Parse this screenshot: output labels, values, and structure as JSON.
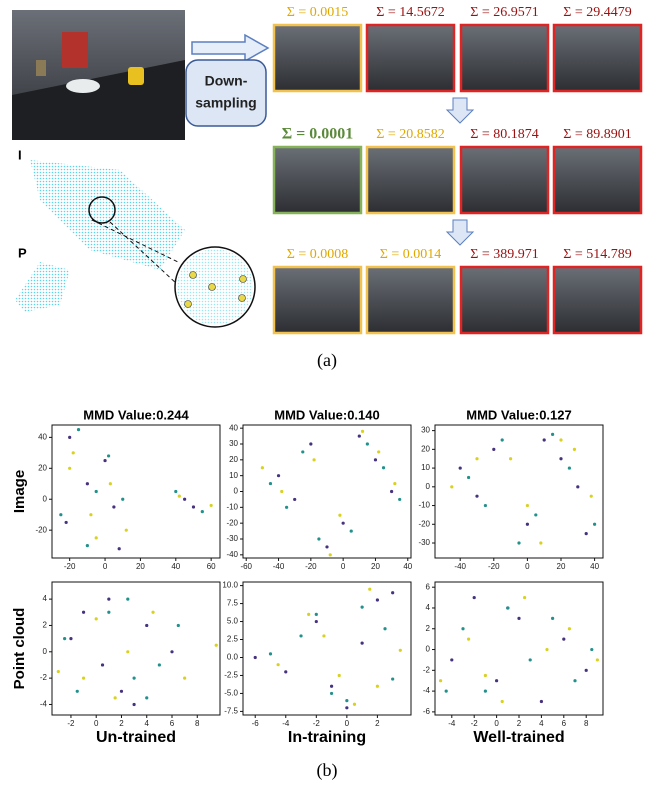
{
  "panel_a": {
    "downsampling": "Down-sampling",
    "image_label": "I",
    "points_label": "P",
    "caption": "(a)",
    "rows": [
      {
        "cells": [
          {
            "label": "Σ = 0.0015",
            "label_color": "#e0a800",
            "frame": "#f2c14e"
          },
          {
            "label": "Σ = 14.5672",
            "label_color": "#9c1010",
            "frame": "#e02424"
          },
          {
            "label": "Σ = 26.9571",
            "label_color": "#9c1010",
            "frame": "#e02424"
          },
          {
            "label": "Σ = 29.4479",
            "label_color": "#9c1010",
            "frame": "#e02424"
          }
        ]
      },
      {
        "cells": [
          {
            "label": "Σ = 0.0001",
            "label_color": "#5b8a3a",
            "frame": "#86b35a",
            "emphasis": true
          },
          {
            "label": "Σ = 20.8582",
            "label_color": "#e0a800",
            "frame": "#f2c14e"
          },
          {
            "label": "Σ = 80.1874",
            "label_color": "#9c1010",
            "frame": "#e02424"
          },
          {
            "label": "Σ = 89.8901",
            "label_color": "#9c1010",
            "frame": "#e02424"
          }
        ]
      },
      {
        "cells": [
          {
            "label": "Σ = 0.0008",
            "label_color": "#e0a800",
            "frame": "#f2c14e"
          },
          {
            "label": "Σ = 0.0014",
            "label_color": "#e0a800",
            "frame": "#f2c14e"
          },
          {
            "label": "Σ = 389.971",
            "label_color": "#9c1010",
            "frame": "#e02424"
          },
          {
            "label": "Σ = 514.789",
            "label_color": "#9c1010",
            "frame": "#e02424"
          }
        ]
      }
    ]
  },
  "panel_b": {
    "caption": "(b)",
    "row_labels": [
      "Image",
      "Point cloud"
    ],
    "col_labels": [
      "Un-trained",
      "In-training",
      "Well-trained"
    ],
    "charts": [
      {
        "type": "scatter",
        "title": "MMD Value:0.244",
        "xlim": [
          -30,
          65
        ],
        "ylim": [
          -38,
          48
        ],
        "xticks": [
          -20,
          0,
          20,
          40,
          60
        ],
        "yticks": [
          -20,
          0,
          20,
          40
        ],
        "series": [
          {
            "color": "#46327e",
            "x": [
              -20,
              -10,
              5,
              45,
              50,
              -22,
              0,
              8
            ],
            "y": [
              40,
              10,
              -5,
              0,
              -5,
              -15,
              25,
              -32
            ]
          },
          {
            "color": "#21918c",
            "x": [
              -15,
              -5,
              10,
              40,
              55,
              -25,
              2,
              -10
            ],
            "y": [
              45,
              5,
              0,
              5,
              -8,
              -10,
              28,
              -30
            ]
          },
          {
            "color": "#d8d21f",
            "x": [
              -18,
              -8,
              12,
              42,
              -20,
              3,
              -5,
              60
            ],
            "y": [
              30,
              -10,
              -20,
              2,
              20,
              10,
              -25,
              -4
            ]
          }
        ]
      },
      {
        "type": "scatter",
        "title": "MMD Value:0.140",
        "xlim": [
          -62,
          42
        ],
        "ylim": [
          -42,
          42
        ],
        "xticks": [
          -60,
          -40,
          -20,
          0,
          20,
          40
        ],
        "yticks": [
          -40,
          -30,
          -20,
          -10,
          0,
          10,
          20,
          30,
          40
        ],
        "series": [
          {
            "color": "#46327e",
            "x": [
              -40,
              -20,
              0,
              20,
              30,
              -10,
              10,
              -30
            ],
            "y": [
              10,
              30,
              -20,
              20,
              0,
              -35,
              35,
              -5
            ]
          },
          {
            "color": "#21918c",
            "x": [
              -45,
              -25,
              5,
              25,
              35,
              -15,
              15,
              -35
            ],
            "y": [
              5,
              25,
              -25,
              15,
              -5,
              -30,
              30,
              -10
            ]
          },
          {
            "color": "#d8d21f",
            "x": [
              -38,
              -18,
              -2,
              22,
              32,
              -8,
              12,
              -50
            ],
            "y": [
              0,
              20,
              -15,
              25,
              5,
              -40,
              38,
              15
            ]
          }
        ]
      },
      {
        "type": "scatter",
        "title": "MMD Value:0.127",
        "xlim": [
          -55,
          45
        ],
        "ylim": [
          -38,
          33
        ],
        "xticks": [
          -40,
          -20,
          0,
          20,
          40
        ],
        "yticks": [
          -30,
          -20,
          -10,
          0,
          10,
          20,
          30
        ],
        "series": [
          {
            "color": "#46327e",
            "x": [
              -40,
              -20,
              0,
              20,
              35,
              -30,
              10,
              30
            ],
            "y": [
              10,
              20,
              -20,
              15,
              -25,
              -5,
              25,
              0
            ]
          },
          {
            "color": "#21918c",
            "x": [
              -35,
              -15,
              5,
              25,
              40,
              -25,
              15,
              -5
            ],
            "y": [
              5,
              25,
              -15,
              10,
              -20,
              -10,
              28,
              -30
            ]
          },
          {
            "color": "#d8d21f",
            "x": [
              -45,
              -10,
              8,
              28,
              38,
              -30,
              0,
              20
            ],
            "y": [
              0,
              15,
              -30,
              20,
              -5,
              15,
              -10,
              25
            ]
          }
        ]
      },
      {
        "type": "scatter",
        "xlim": [
          -3.5,
          9.8
        ],
        "ylim": [
          -4.8,
          5.3
        ],
        "xticks": [
          -2,
          0,
          2,
          4,
          6,
          8
        ],
        "yticks": [
          -4,
          -2,
          0,
          2,
          4
        ],
        "series": [
          {
            "color": "#46327e",
            "x": [
              -1,
              0.5,
              2,
              4,
              6,
              3,
              1,
              -2
            ],
            "y": [
              3,
              -1,
              -3,
              2,
              0,
              -4,
              4,
              1
            ]
          },
          {
            "color": "#21918c",
            "x": [
              -2.5,
              1,
              3,
              5,
              6.5,
              2.5,
              -1.5,
              4
            ],
            "y": [
              1,
              3,
              -2,
              -1,
              2,
              4,
              -3,
              -3.5
            ]
          },
          {
            "color": "#d8d21f",
            "x": [
              -3,
              0,
              2.5,
              4.5,
              7,
              9.5,
              1.5,
              -1
            ],
            "y": [
              -1.5,
              2.5,
              0,
              3,
              -2,
              0.5,
              -3.5,
              -2
            ]
          }
        ]
      },
      {
        "type": "scatter",
        "xlim": [
          -6.8,
          4.2
        ],
        "ylim": [
          -8,
          10.5
        ],
        "xticks": [
          -6,
          -4,
          -2,
          0,
          2
        ],
        "yticks": [
          -7.5,
          {
            "value": -5,
            "label": "-5.0"
          },
          -2.5,
          {
            "value": 0,
            "label": "0.0"
          },
          2.5,
          {
            "value": 5,
            "label": "5.0"
          },
          7.5,
          {
            "value": 10,
            "label": "10.0"
          }
        ],
        "series": [
          {
            "color": "#46327e",
            "x": [
              -6,
              -4,
              -2,
              0,
              2,
              1,
              -1,
              3
            ],
            "y": [
              0,
              -2,
              5,
              -7,
              8,
              2,
              -4,
              9
            ]
          },
          {
            "color": "#21918c",
            "x": [
              -5,
              -3,
              -1,
              1,
              3,
              0,
              -2,
              2.5
            ],
            "y": [
              0.5,
              3,
              -5,
              7,
              -3,
              -6,
              6,
              4
            ]
          },
          {
            "color": "#d8d21f",
            "x": [
              -4.5,
              -2.5,
              -0.5,
              1.5,
              3.5,
              0.5,
              -1.5,
              2
            ],
            "y": [
              -1,
              6,
              -2.5,
              9.5,
              1,
              -6.5,
              3,
              -4
            ]
          }
        ]
      },
      {
        "type": "scatter",
        "xlim": [
          -5.5,
          9.5
        ],
        "ylim": [
          -6.3,
          6.5
        ],
        "xticks": [
          -4,
          -2,
          0,
          2,
          4,
          6,
          8
        ],
        "yticks": [
          -6,
          -4,
          -2,
          0,
          2,
          4,
          6
        ],
        "series": [
          {
            "color": "#46327e",
            "x": [
              -4,
              -2,
              0,
              2,
              4,
              6,
              8,
              1
            ],
            "y": [
              -1,
              5,
              -3,
              3,
              -5,
              1,
              -2,
              4
            ]
          },
          {
            "color": "#21918c",
            "x": [
              -3,
              -1,
              1,
              3,
              5,
              7,
              8.5,
              -4.5
            ],
            "y": [
              2,
              -4,
              4,
              -1,
              3,
              -3,
              0,
              -4
            ]
          },
          {
            "color": "#d8d21f",
            "x": [
              -5,
              -2.5,
              0.5,
              2.5,
              4.5,
              6.5,
              9,
              -1
            ],
            "y": [
              -3,
              1,
              -5,
              5,
              0,
              2,
              -1,
              -2.5
            ]
          }
        ]
      }
    ]
  }
}
